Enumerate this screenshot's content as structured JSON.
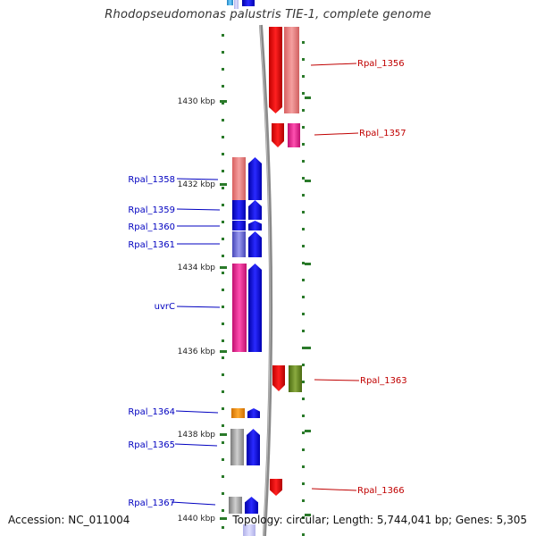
{
  "title": "Rhodopseudomonas palustris TIE-1, complete genome",
  "footer": {
    "accession": "Accession: NC_011004",
    "summary": "Topology: circular; Length: 5,744,041 bp; Genes: 5,305"
  },
  "colors": {
    "reverse_label": "#0000c0",
    "forward_label": "#c00000",
    "tick": "#2a7a2a",
    "backbone": "#808080"
  },
  "ruler": {
    "unit": "kbp",
    "ticks": [
      {
        "kbp": 1430,
        "label": "1430 kbp"
      },
      {
        "kbp": 1432,
        "label": "1432 kbp"
      },
      {
        "kbp": 1434,
        "label": "1434 kbp"
      },
      {
        "kbp": 1436,
        "label": "1436 kbp"
      },
      {
        "kbp": 1438,
        "label": "1438 kbp"
      },
      {
        "kbp": 1440,
        "label": "1440 kbp"
      }
    ]
  },
  "genes_reverse": [
    {
      "label": "Rpal_1358",
      "feature_color": "#e8787a"
    },
    {
      "label": "Rpal_1359",
      "feature_color": "#1a1ae0"
    },
    {
      "label": "Rpal_1360",
      "feature_color": "#1a1ae0"
    },
    {
      "label": "Rpal_1361",
      "feature_color": "#6b6bd6"
    },
    {
      "label": "uvrC",
      "feature_color": "#e8288a"
    },
    {
      "label": "Rpal_1364",
      "feature_color": "#f08a00"
    },
    {
      "label": "Rpal_1365",
      "feature_color": "#a0a0a0"
    },
    {
      "label": "Rpal_1367",
      "feature_color": "#a0a0a0"
    }
  ],
  "genes_forward": [
    {
      "label": "Rpal_1356",
      "feature_color": "#f08c8c"
    },
    {
      "label": "Rpal_1357",
      "feature_color": "#e8289a"
    },
    {
      "label": "Rpal_1363",
      "feature_color": "#6a8a20"
    },
    {
      "label": "Rpal_1366",
      "feature_color": "#e01010"
    }
  ]
}
